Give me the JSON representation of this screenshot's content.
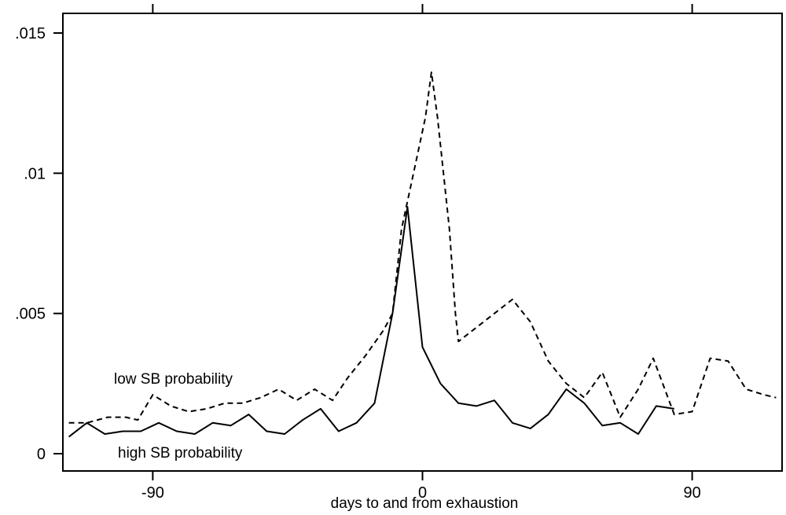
{
  "chart_data": {
    "type": "line",
    "title": "",
    "xlabel": "days to and from exhaustion",
    "ylabel": "",
    "xlim": [
      -120,
      120
    ],
    "ylim": [
      0,
      0.015
    ],
    "x_ticks": [
      -90,
      0,
      90
    ],
    "x_tick_labels": [
      "-90",
      "0",
      "90"
    ],
    "y_ticks": [
      0,
      0.005,
      0.01,
      0.015
    ],
    "y_tick_labels": [
      "0",
      ".005",
      ".01",
      ".015"
    ],
    "grid": false,
    "legend": "none",
    "series": [
      {
        "name": "low SB probability",
        "line_style": "dashed",
        "color": "#000000",
        "points": [
          [
            -118,
            0.0011
          ],
          [
            -112,
            0.0011
          ],
          [
            -105,
            0.0013
          ],
          [
            -99,
            0.0013
          ],
          [
            -95,
            0.0012
          ],
          [
            -90,
            0.0021
          ],
          [
            -84,
            0.0017
          ],
          [
            -78,
            0.0015
          ],
          [
            -72,
            0.0016
          ],
          [
            -66,
            0.0018
          ],
          [
            -60,
            0.0018
          ],
          [
            -54,
            0.002
          ],
          [
            -48,
            0.0023
          ],
          [
            -42,
            0.0019
          ],
          [
            -36,
            0.0023
          ],
          [
            -30,
            0.0019
          ],
          [
            -25,
            0.0027
          ],
          [
            -19,
            0.0035
          ],
          [
            -13,
            0.0044
          ],
          [
            -10,
            0.005
          ],
          [
            -7,
            0.008
          ],
          [
            -5,
            0.009
          ],
          [
            -3,
            0.01
          ],
          [
            -1,
            0.011
          ],
          [
            1,
            0.012
          ],
          [
            3,
            0.0136
          ],
          [
            5,
            0.012
          ],
          [
            7,
            0.01
          ],
          [
            9,
            0.008
          ],
          [
            11,
            0.005
          ],
          [
            12,
            0.004
          ],
          [
            18,
            0.0045
          ],
          [
            24,
            0.005
          ],
          [
            30,
            0.0055
          ],
          [
            36,
            0.0047
          ],
          [
            42,
            0.0033
          ],
          [
            48,
            0.0025
          ],
          [
            54,
            0.002
          ],
          [
            60,
            0.0029
          ],
          [
            66,
            0.0013
          ],
          [
            72,
            0.0023
          ],
          [
            77,
            0.0034
          ],
          [
            84,
            0.0014
          ],
          [
            90,
            0.0015
          ],
          [
            96,
            0.0034
          ],
          [
            102,
            0.0033
          ],
          [
            108,
            0.0023
          ],
          [
            114,
            0.0021
          ],
          [
            118,
            0.002
          ]
        ]
      },
      {
        "name": "high SB probability",
        "line_style": "solid",
        "color": "#000000",
        "points": [
          [
            -118,
            0.0006
          ],
          [
            -112,
            0.0011
          ],
          [
            -106,
            0.0007
          ],
          [
            -100,
            0.0008
          ],
          [
            -94,
            0.0008
          ],
          [
            -88,
            0.0011
          ],
          [
            -82,
            0.0008
          ],
          [
            -76,
            0.0007
          ],
          [
            -70,
            0.0011
          ],
          [
            -64,
            0.001
          ],
          [
            -58,
            0.0014
          ],
          [
            -52,
            0.0008
          ],
          [
            -46,
            0.0007
          ],
          [
            -40,
            0.0012
          ],
          [
            -34,
            0.0016
          ],
          [
            -28,
            0.0008
          ],
          [
            -22,
            0.0011
          ],
          [
            -16,
            0.0018
          ],
          [
            -10,
            0.005
          ],
          [
            -5,
            0.0088
          ],
          [
            0,
            0.0038
          ],
          [
            6,
            0.0025
          ],
          [
            12,
            0.0018
          ],
          [
            18,
            0.0017
          ],
          [
            24,
            0.0019
          ],
          [
            30,
            0.0011
          ],
          [
            36,
            0.0009
          ],
          [
            42,
            0.0014
          ],
          [
            48,
            0.0023
          ],
          [
            54,
            0.0018
          ],
          [
            60,
            0.001
          ],
          [
            66,
            0.0011
          ],
          [
            72,
            0.0007
          ],
          [
            78,
            0.0017
          ],
          [
            84,
            0.0016
          ]
        ]
      }
    ],
    "annotations": [
      "low SB probability",
      "high SB probability"
    ]
  }
}
